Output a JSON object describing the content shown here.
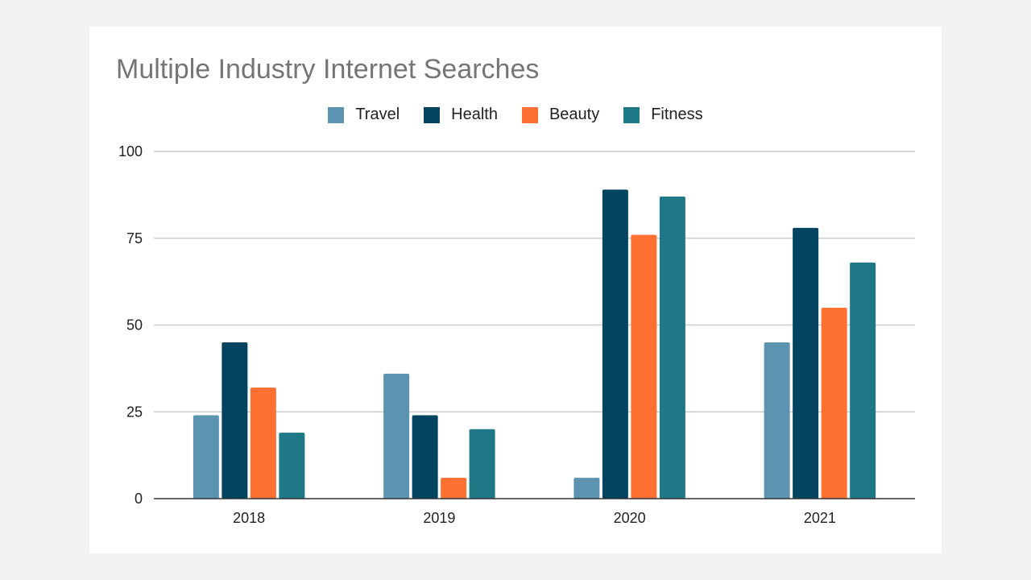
{
  "colors": {
    "Travel": "#5b93b0",
    "Health": "#02445f",
    "Beauty": "#fe7133",
    "Fitness": "#1e7885",
    "grid": "#cccccc",
    "axis": "#333333"
  },
  "chart_data": {
    "type": "bar",
    "title": "Multiple Industry Internet Searches",
    "categories": [
      "2018",
      "2019",
      "2020",
      "2021"
    ],
    "series": [
      {
        "name": "Travel",
        "values": [
          24,
          36,
          6,
          45
        ]
      },
      {
        "name": "Health",
        "values": [
          45,
          24,
          89,
          78
        ]
      },
      {
        "name": "Beauty",
        "values": [
          32,
          6,
          76,
          55
        ]
      },
      {
        "name": "Fitness",
        "values": [
          19,
          20,
          87,
          68
        ]
      }
    ],
    "yticks": [
      "0",
      "25",
      "50",
      "75",
      "100"
    ],
    "ylim": [
      0,
      100
    ],
    "grid": true,
    "legend": "top-center"
  }
}
